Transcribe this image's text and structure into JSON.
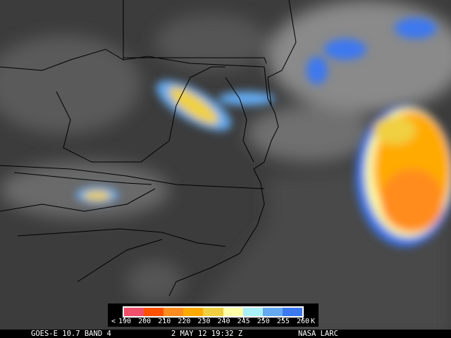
{
  "caption": {
    "satellite": "GOES-E 10.7 BAND 4",
    "datetime": "2 MAY 12 19:32 Z",
    "source": "NASA LARC"
  },
  "colorbar": {
    "prefix": "<",
    "unit": "K",
    "labels": [
      "190",
      "200",
      "210",
      "220",
      "230",
      "240",
      "245",
      "250",
      "255",
      "260"
    ],
    "bins": [
      {
        "from": 190,
        "to": 200,
        "color": "#f0506a"
      },
      {
        "from": 200,
        "to": 210,
        "color": "#ff5000"
      },
      {
        "from": 210,
        "to": 220,
        "color": "#ff8c1e"
      },
      {
        "from": 220,
        "to": 230,
        "color": "#ffaa00"
      },
      {
        "from": 230,
        "to": 240,
        "color": "#f0d040"
      },
      {
        "from": 240,
        "to": 245,
        "color": "#ffffa8"
      },
      {
        "from": 245,
        "to": 250,
        "color": "#aaf0f8"
      },
      {
        "from": 250,
        "to": 255,
        "color": "#64aaf0"
      },
      {
        "from": 255,
        "to": 260,
        "color": "#3c78f0"
      }
    ]
  }
}
